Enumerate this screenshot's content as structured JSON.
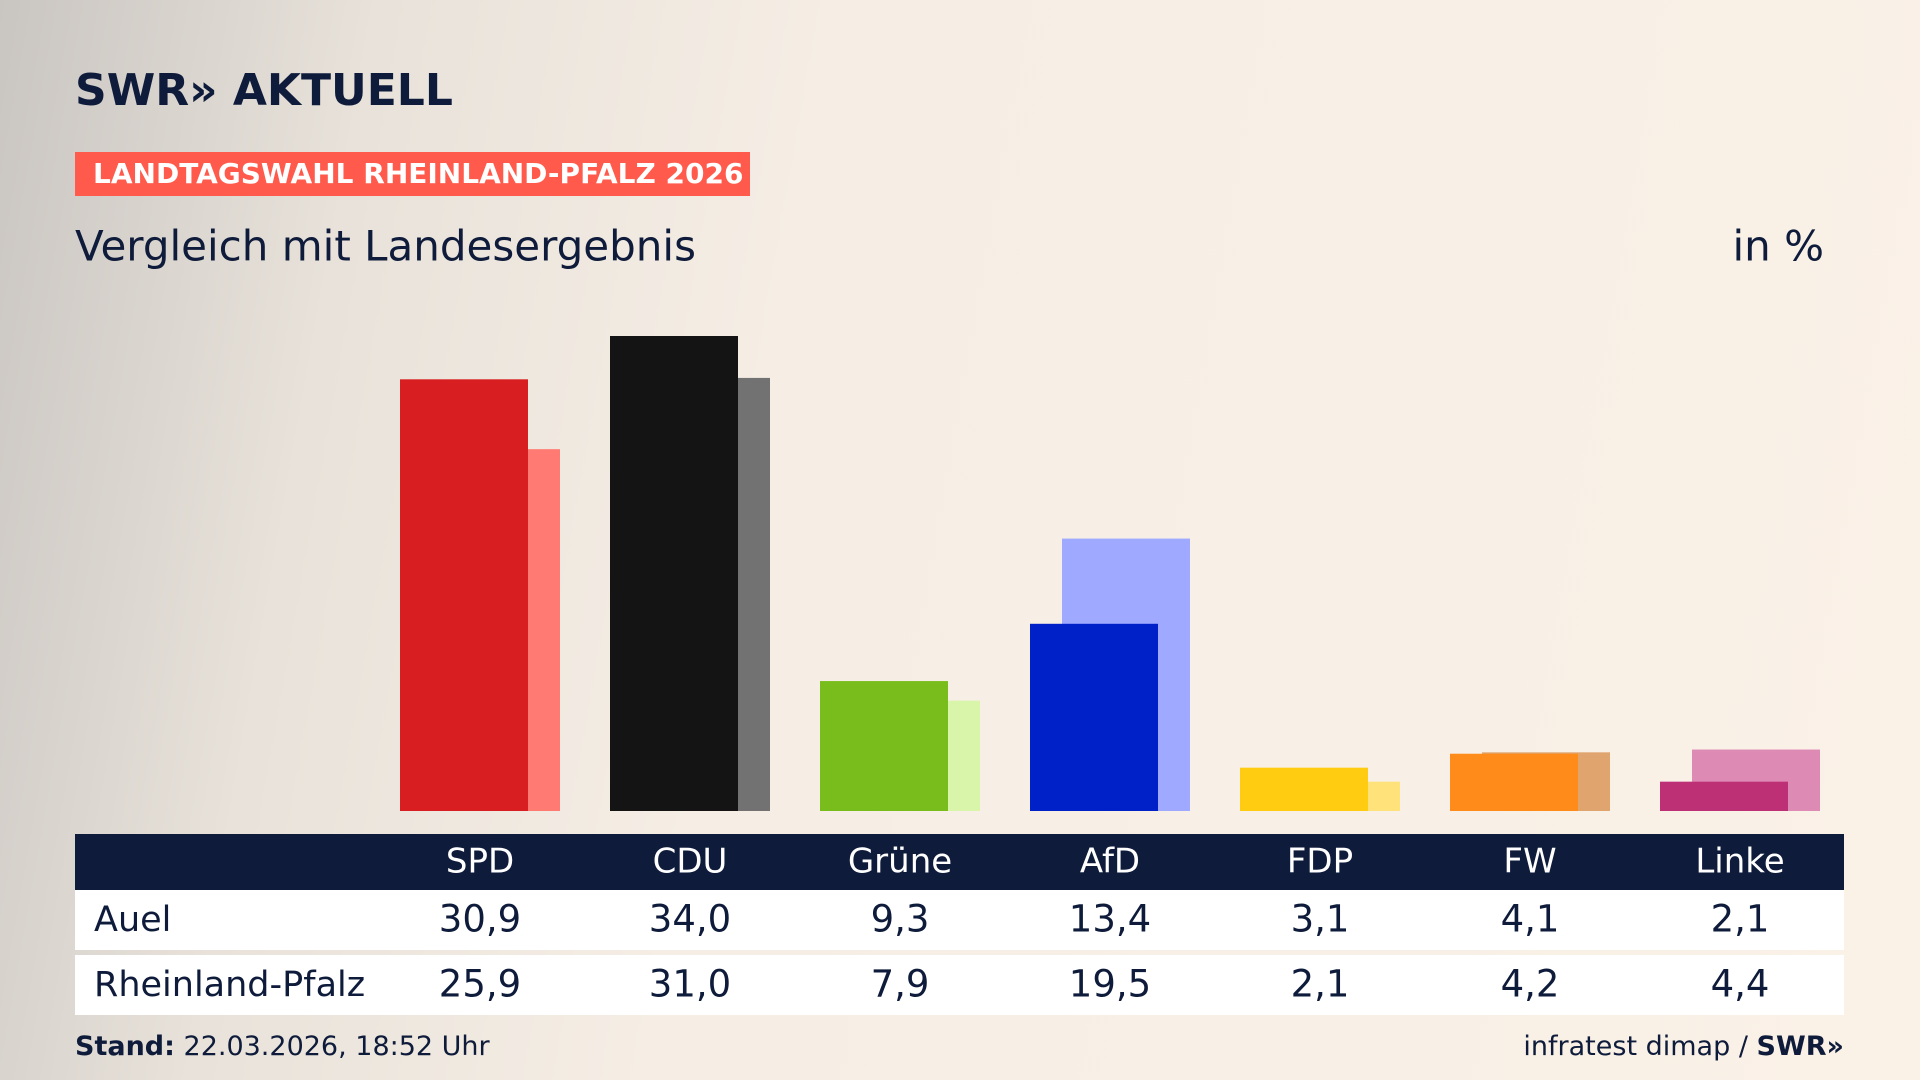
{
  "header": {
    "logo": "SWR» AKTUELL",
    "badge": "LANDTAGSWAHL RHEINLAND-PFALZ 2026"
  },
  "chart_data": {
    "type": "bar",
    "title": "Vergleich mit Landesergebnis",
    "unit": "in %",
    "categories": [
      "SPD",
      "CDU",
      "Grüne",
      "AfD",
      "FDP",
      "FW",
      "Linke"
    ],
    "series": [
      {
        "name": "Auel",
        "values": [
          30.9,
          34.0,
          9.3,
          13.4,
          3.1,
          4.1,
          2.1
        ],
        "value_labels": [
          "30,9",
          "34,0",
          "9,3",
          "13,4",
          "3,1",
          "4,1",
          "2,1"
        ],
        "colors": [
          "#d81e20",
          "#141414",
          "#79bd1c",
          "#0021c8",
          "#ffcc11",
          "#ff8c1a",
          "#bd3075"
        ]
      },
      {
        "name": "Rheinland-Pfalz",
        "values": [
          25.9,
          31.0,
          7.9,
          19.5,
          2.1,
          4.2,
          4.4
        ],
        "value_labels": [
          "25,9",
          "31,0",
          "7,9",
          "19,5",
          "2,1",
          "4,2",
          "4,4"
        ],
        "colors": [
          "#ff7a72",
          "#727272",
          "#d8f5aa",
          "#9ea9ff",
          "#ffe27a",
          "#e0a46e",
          "#dd8ab4"
        ]
      }
    ]
  },
  "footer": {
    "stand_label": "Stand:",
    "stand_value": "22.03.2026, 18:52 Uhr",
    "source": "infratest dimap /",
    "source_logo": "SWR»"
  }
}
